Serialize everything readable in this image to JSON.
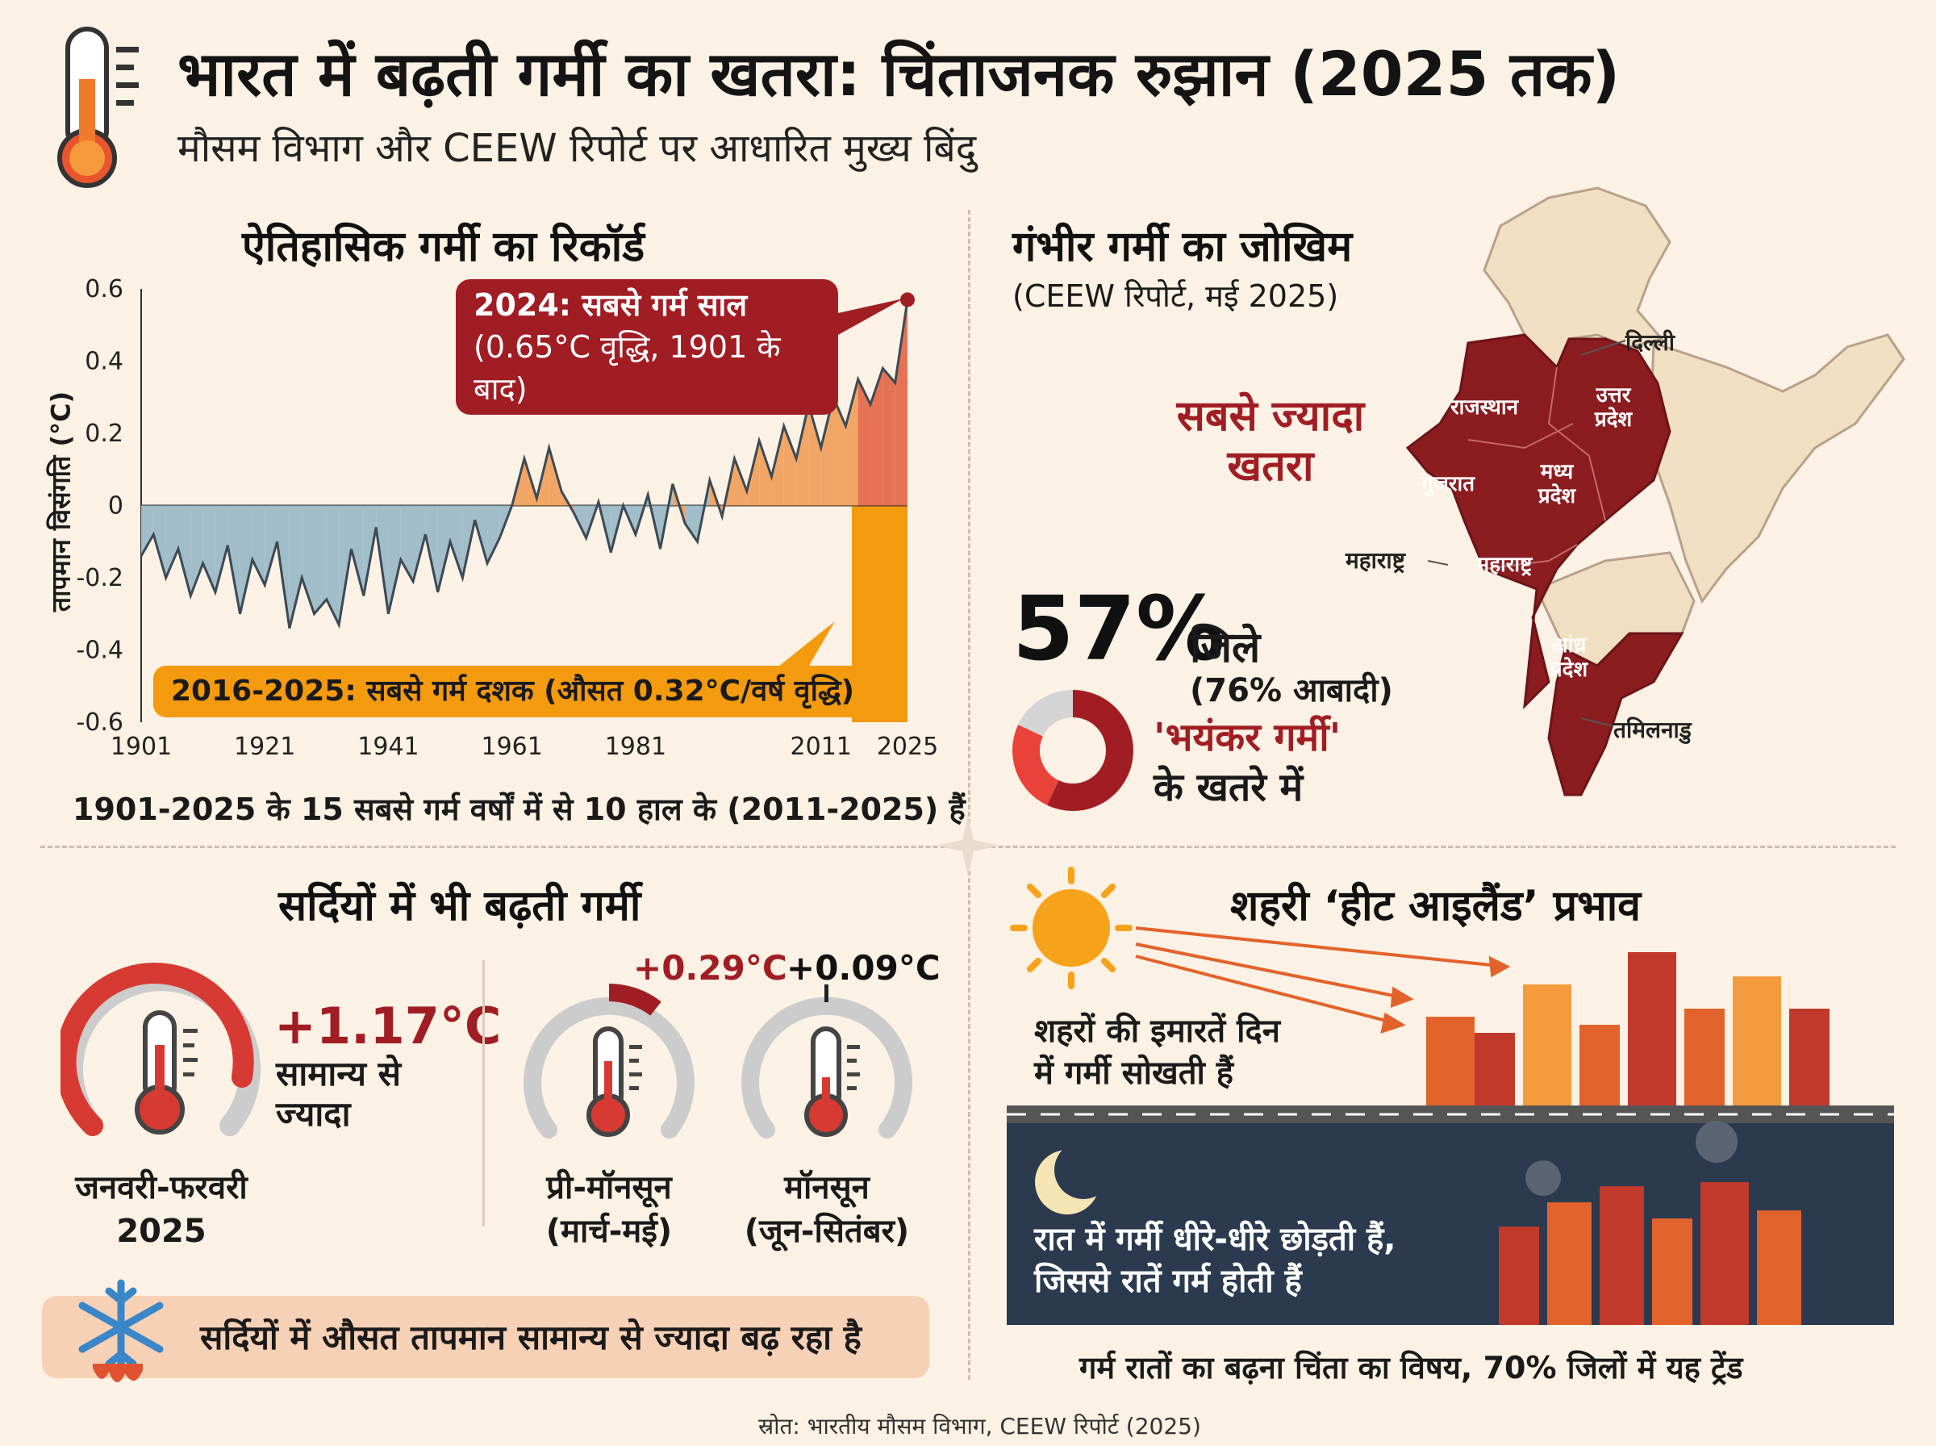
{
  "header": {
    "title": "भारत में बढ़ती गर्मी का खतरा: चिंताजनक रुझान (2025 तक)",
    "subtitle": "मौसम विभाग और CEEW रिपोर्ट पर आधारित मुख्य बिंदु",
    "icon": "thermometer-icon"
  },
  "history": {
    "title": "ऐतिहासिक गर्मी का रिकॉर्ड",
    "callout_2024_line1": "2024: सबसे गर्म साल",
    "callout_2024_line2": "(0.65°C वृद्धि, 1901 के बाद)",
    "callout_decade": "2016-2025: सबसे गर्म दशक (औसत 0.32°C/वर्ष वृद्धि)",
    "footnote": "1901-2025 के 15 सबसे गर्म वर्षों में से 10 हाल के (2011-2025) हैं"
  },
  "chart_data": {
    "type": "area",
    "title": "ऐतिहासिक गर्मी का रिकॉर्ड",
    "xlabel": "",
    "ylabel": "तापमान विसंगति (°C)",
    "xlim": [
      1901,
      2025
    ],
    "ylim": [
      -0.6,
      0.6
    ],
    "x_ticks": [
      1901,
      1921,
      1941,
      1961,
      1981,
      2011,
      2025
    ],
    "y_ticks": [
      0.6,
      0.4,
      0.2,
      0,
      -0.2,
      -0.4,
      -0.6
    ],
    "y_tick_labels": [
      "0.6",
      "0.4",
      "0.2",
      "0",
      "-0.2",
      "-0.4",
      "-0.6"
    ],
    "colors": {
      "negative": "#9db9c8",
      "positive": "#f1a15e",
      "recent": "#e56a4c",
      "line": "#3c4a55",
      "highlight": "#f39a0f",
      "marker": "#a11d24"
    },
    "highlight_range": [
      2016,
      2025
    ],
    "marker": {
      "x": 2025,
      "y": 0.57
    },
    "x": [
      1901,
      1903,
      1905,
      1907,
      1909,
      1911,
      1913,
      1915,
      1917,
      1919,
      1921,
      1923,
      1925,
      1927,
      1929,
      1931,
      1933,
      1935,
      1937,
      1939,
      1941,
      1943,
      1945,
      1947,
      1949,
      1951,
      1953,
      1955,
      1957,
      1959,
      1961,
      1963,
      1965,
      1967,
      1969,
      1971,
      1973,
      1975,
      1977,
      1979,
      1981,
      1983,
      1985,
      1987,
      1989,
      1991,
      1993,
      1995,
      1997,
      1999,
      2001,
      2003,
      2005,
      2007,
      2009,
      2011,
      2013,
      2015,
      2017,
      2019,
      2021,
      2023,
      2025
    ],
    "values": [
      -0.14,
      -0.08,
      -0.2,
      -0.12,
      -0.25,
      -0.16,
      -0.24,
      -0.11,
      -0.3,
      -0.15,
      -0.22,
      -0.1,
      -0.34,
      -0.2,
      -0.3,
      -0.26,
      -0.33,
      -0.12,
      -0.25,
      -0.06,
      -0.3,
      -0.15,
      -0.21,
      -0.08,
      -0.24,
      -0.1,
      -0.2,
      -0.04,
      -0.16,
      -0.09,
      0.0,
      0.13,
      0.02,
      0.16,
      0.04,
      -0.02,
      -0.09,
      0.01,
      -0.13,
      0.0,
      -0.08,
      0.03,
      -0.12,
      0.06,
      -0.05,
      -0.1,
      0.07,
      -0.03,
      0.13,
      0.04,
      0.18,
      0.08,
      0.22,
      0.13,
      0.28,
      0.16,
      0.3,
      0.22,
      0.35,
      0.28,
      0.38,
      0.34,
      0.57
    ]
  },
  "risk": {
    "title": "गंभीर गर्मी का जोखिम",
    "source": "(CEEW रिपोर्ट, मई 2025)",
    "most_risk_line1": "सबसे ज्यादा",
    "most_risk_line2": "खतरा",
    "percent": "57%",
    "districts": "जिले",
    "population": "(76% आबादी)",
    "severe": "'भयंकर गर्मी'",
    "at_risk": "के खतरे में",
    "donut_share": 57,
    "states": {
      "delhi": "दिल्ली",
      "rajasthan": "राजस्थान",
      "up_line1": "उत्तर",
      "up_line2": "प्रदेश",
      "gujarat": "गुजरात",
      "mp_line1": "मध्य",
      "mp_line2": "प्रदेश",
      "maharashtra_out": "महाराष्ट्र",
      "maharashtra_in": "महाराष्ट्र",
      "ap_line1": "आंध्र",
      "ap_line2": "प्रदेश",
      "tamilnadu": "तमिलनाडु"
    }
  },
  "winter": {
    "title": "सर्दियों में भी बढ़ती गर्मी",
    "g1_value": "+1.17°C",
    "g1_desc_line1": "सामान्य से",
    "g1_desc_line2": "ज्यादा",
    "g1_label_line1": "जनवरी-फरवरी",
    "g1_label_line2": "2025",
    "g2_value": "+0.29°C",
    "g2_label_line1": "प्री-मॉनसून",
    "g2_label_line2": "(मार्च-मई)",
    "g3_value": "+0.09°C",
    "g3_label_line1": "मॉनसून",
    "g3_label_line2": "(जून-सितंबर)",
    "banner": "सर्दियों में औसत तापमान सामान्य से ज्यादा बढ़ रहा है"
  },
  "urban": {
    "title": "शहरी ‘हीट आइलैंड’ प्रभाव",
    "day_line1": "शहरों की इमारतें दिन",
    "day_line2": "में गर्मी सोखती हैं",
    "night_line1": "रात में गर्मी धीरे-धीरे छोड़ती हैं,",
    "night_line2": "जिससे रातें गर्म होती हैं",
    "footer": "गर्म रातों का बढ़ना चिंता का विषय, 70% जिलों में यह ट्रेंड"
  },
  "source": "स्रोत: भारतीय मौसम विभाग, CEEW रिपोर्ट (2025)"
}
